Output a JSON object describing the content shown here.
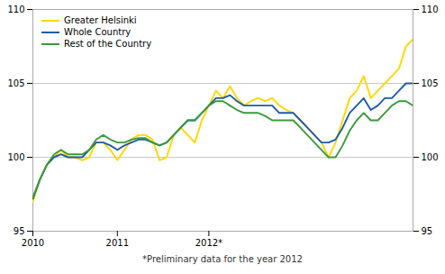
{
  "chart_data": {
    "type": "line",
    "categories": [
      "2010",
      null,
      null,
      null,
      null,
      null,
      null,
      null,
      null,
      null,
      null,
      null,
      "2011",
      null,
      null,
      null,
      null,
      null,
      null,
      null,
      null,
      null,
      null,
      null,
      null,
      "2012*",
      null,
      null,
      null,
      null,
      null,
      null,
      null,
      null,
      null,
      null,
      null,
      null,
      null,
      null,
      null,
      null,
      null,
      null,
      null,
      null,
      null,
      null,
      null,
      null,
      null,
      null,
      null,
      null,
      null
    ],
    "series": [
      {
        "name": "Greater Helsinki",
        "color": "#FFD700",
        "values": [
          97.0,
          98.5,
          99.5,
          100.0,
          100.5,
          100.0,
          100.0,
          99.8,
          100.0,
          101.0,
          101.0,
          100.5,
          99.8,
          100.5,
          101.2,
          101.5,
          101.5,
          101.2,
          99.8,
          100.0,
          101.5,
          102.0,
          101.5,
          101.0,
          102.5,
          103.5,
          104.5,
          104.0,
          104.8,
          104.0,
          103.5,
          103.8,
          104.0,
          103.8,
          104.0,
          103.5,
          103.2,
          103.0,
          102.5,
          102.0,
          101.5,
          101.0,
          100.0,
          101.0,
          102.5,
          104.0,
          104.5,
          105.5,
          104.0,
          104.5,
          105.0,
          105.5,
          106.0,
          107.5,
          108.0
        ]
      },
      {
        "name": "Whole Country",
        "color": "#1F5BA8",
        "values": [
          97.2,
          98.5,
          99.5,
          100.0,
          100.2,
          100.0,
          100.0,
          100.0,
          100.5,
          101.0,
          101.0,
          100.8,
          100.5,
          100.8,
          101.0,
          101.2,
          101.2,
          101.0,
          100.8,
          101.0,
          101.5,
          102.0,
          102.5,
          102.5,
          103.0,
          103.5,
          104.0,
          104.0,
          104.2,
          103.8,
          103.5,
          103.5,
          103.5,
          103.5,
          103.5,
          103.0,
          103.0,
          103.0,
          102.5,
          102.0,
          101.5,
          101.0,
          101.0,
          101.2,
          102.0,
          103.0,
          103.5,
          104.0,
          103.2,
          103.5,
          104.0,
          104.0,
          104.5,
          105.0,
          105.0
        ]
      },
      {
        "name": "Rest of the Country",
        "color": "#3A9A3A",
        "values": [
          97.3,
          98.5,
          99.5,
          100.2,
          100.5,
          100.2,
          100.2,
          100.2,
          100.5,
          101.2,
          101.5,
          101.2,
          101.0,
          101.0,
          101.2,
          101.3,
          101.3,
          101.0,
          100.8,
          101.0,
          101.5,
          102.0,
          102.5,
          102.5,
          103.0,
          103.5,
          103.8,
          103.8,
          103.5,
          103.2,
          103.0,
          103.0,
          103.0,
          102.8,
          102.5,
          102.5,
          102.5,
          102.5,
          102.0,
          101.5,
          101.0,
          100.5,
          100.0,
          100.0,
          100.8,
          101.8,
          102.5,
          103.0,
          102.5,
          102.5,
          103.0,
          103.5,
          103.8,
          103.8,
          103.5
        ]
      }
    ],
    "ylim": [
      95,
      110
    ],
    "yticks": [
      95,
      100,
      105,
      110
    ],
    "y2lim": [
      95,
      110
    ],
    "y2ticks": [
      95,
      100,
      105,
      110
    ],
    "grid": true,
    "legend": "upper left",
    "annotation": "*Preliminary data for the year 2012"
  }
}
